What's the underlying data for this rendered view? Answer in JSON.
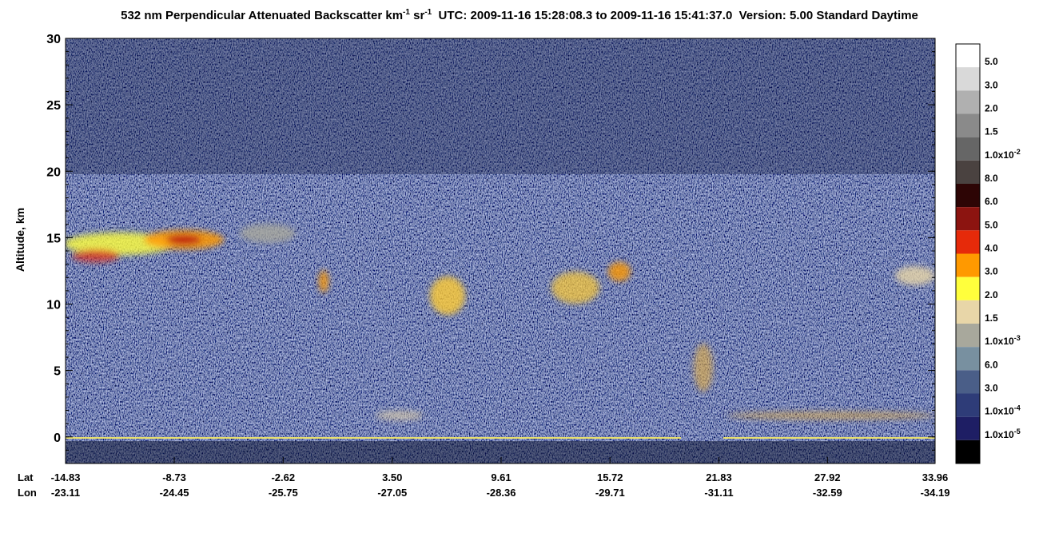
{
  "chart_data": {
    "type": "curtain",
    "title": {
      "part1": "532 nm Perpendicular Attenuated Backscatter km",
      "sup1": "-1",
      "part2": " sr",
      "sup2": "-1",
      "part3": "  UTC: 2009-11-16 15:28:08.3 to 2009-11-16 15:41:37.0  Version: 5.00 Standard Daytime"
    },
    "y_label": "Altitude, km",
    "ylim": [
      -2,
      30
    ],
    "yticks": [
      0,
      5,
      10,
      15,
      20,
      25,
      30
    ],
    "x_row_labels": [
      "Lat",
      "Lon"
    ],
    "xlim": [
      -14.83,
      33.96
    ],
    "xticks": [
      -14.83,
      -8.73,
      -2.62,
      {
        "value": 3.5,
        "label": "3.50"
      },
      9.61,
      15.72,
      21.83,
      27.92,
      33.96
    ],
    "lon_labels": [
      "-23.11",
      "-24.45",
      "-25.75",
      "-27.05",
      "-28.36",
      "-29.71",
      "-31.11",
      "-32.59",
      "-34.19"
    ],
    "colorbar": {
      "colors": [
        "#ffffff",
        "#d9d9d9",
        "#b0b0b0",
        "#8a8a8a",
        "#666666",
        "#4a4240",
        "#2d0505",
        "#8c1410",
        "#e62a0a",
        "#ff9900",
        "#ffff3c",
        "#e8d6a8",
        "#a8a89c",
        "#7890a0",
        "#4a5e88",
        "#2e3c78",
        "#1e1e64",
        "#000000"
      ],
      "labels": [
        {
          "text": "5.0"
        },
        {
          "text": "3.0"
        },
        {
          "text": "2.0"
        },
        {
          "text": "1.5"
        },
        {
          "text": "1.0x10",
          "sup": "-2"
        },
        {
          "text": "8.0"
        },
        {
          "text": "6.0"
        },
        {
          "text": "5.0"
        },
        {
          "text": "4.0"
        },
        {
          "text": "3.0"
        },
        {
          "text": "2.0"
        },
        {
          "text": "1.5"
        },
        {
          "text": "1.0x10",
          "sup": "-3"
        },
        {
          "text": "6.0"
        },
        {
          "text": "3.0"
        },
        {
          "text": "1.0x10",
          "sup": "-4"
        },
        {
          "text": "1.0x10",
          "sup": "-5"
        }
      ]
    }
  }
}
